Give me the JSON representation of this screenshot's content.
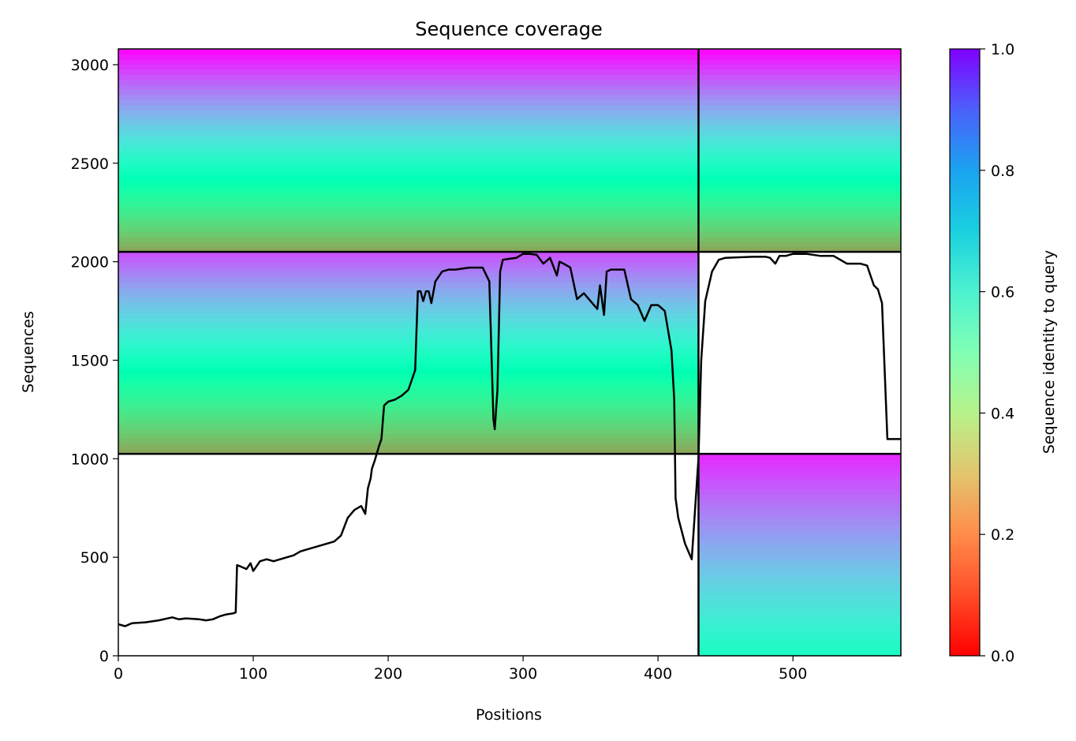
{
  "chart_data": {
    "type": "heatmap",
    "title": "Sequence coverage",
    "xlabel": "Positions",
    "ylabel": "Sequences",
    "xlim": [
      0,
      580
    ],
    "ylim": [
      0,
      3080
    ],
    "x_ticks": [
      0,
      100,
      200,
      300,
      400,
      500
    ],
    "y_ticks": [
      0,
      500,
      1000,
      1500,
      2000,
      2500,
      3000
    ],
    "grid": false,
    "colorbar": {
      "label": "Sequence identity to query",
      "range": [
        0,
        1
      ],
      "ticks": [
        0.0,
        0.2,
        0.4,
        0.6,
        0.8,
        1.0
      ],
      "tick_labels": [
        "0.0",
        "0.2",
        "0.4",
        "0.6",
        "0.8",
        "1.0"
      ],
      "colormap": "rainbow"
    },
    "block_separators": {
      "x": [
        430
      ],
      "y": [
        1025,
        2050
      ]
    },
    "blocks": [
      {
        "name": "block-lower-left",
        "x_range": [
          0,
          430
        ],
        "y_range": [
          0,
          1025
        ],
        "coverage": "empty"
      },
      {
        "name": "block-lower-right",
        "x_range": [
          430,
          580
        ],
        "y_range": [
          0,
          1025
        ],
        "identity_bottom": 0.55,
        "identity_top": 0.95
      },
      {
        "name": "block-middle-left",
        "x_range": [
          0,
          430
        ],
        "y_range": [
          1025,
          2050
        ],
        "identity_bottom": 0.22,
        "identity_top": 0.9
      },
      {
        "name": "block-middle-right",
        "x_range": [
          430,
          580
        ],
        "y_range": [
          1025,
          2050
        ],
        "coverage": "empty"
      },
      {
        "name": "block-upper-left",
        "x_range": [
          0,
          430
        ],
        "y_range": [
          2050,
          3080
        ],
        "identity_bottom": 0.22,
        "identity_top": 1.0
      },
      {
        "name": "block-upper-right",
        "x_range": [
          430,
          580
        ],
        "y_range": [
          2050,
          3080
        ],
        "identity_bottom": 0.22,
        "identity_top": 1.0
      }
    ],
    "series": [
      {
        "type": "line",
        "color": "#000000",
        "x": [
          0,
          5,
          10,
          20,
          30,
          40,
          45,
          50,
          60,
          65,
          70,
          75,
          80,
          85,
          87,
          88,
          90,
          95,
          98,
          100,
          105,
          110,
          115,
          120,
          130,
          135,
          140,
          150,
          160,
          165,
          170,
          175,
          180,
          183,
          185,
          187,
          188,
          190,
          193,
          195,
          197,
          200,
          205,
          210,
          215,
          220,
          222,
          224,
          226,
          228,
          230,
          232,
          235,
          240,
          245,
          250,
          260,
          270,
          275,
          278,
          279,
          281,
          283,
          285,
          290,
          295,
          300,
          305,
          310,
          315,
          320,
          325,
          327,
          330,
          335,
          340,
          345,
          355,
          357,
          360,
          362,
          365,
          370,
          375,
          380,
          385,
          390,
          395,
          400,
          405,
          410,
          412,
          413,
          415,
          420,
          425,
          430,
          432,
          435,
          440,
          445,
          450,
          470,
          480,
          483,
          487,
          490,
          495,
          500,
          510,
          520,
          530,
          540,
          550,
          555,
          560,
          563,
          566,
          570,
          575,
          580
        ],
        "y": [
          160,
          150,
          165,
          170,
          180,
          195,
          185,
          190,
          185,
          180,
          185,
          200,
          210,
          215,
          220,
          460,
          455,
          440,
          470,
          430,
          480,
          490,
          480,
          490,
          510,
          530,
          540,
          560,
          580,
          610,
          700,
          740,
          760,
          720,
          850,
          900,
          950,
          990,
          1060,
          1100,
          1270,
          1290,
          1300,
          1320,
          1350,
          1450,
          1850,
          1850,
          1800,
          1850,
          1850,
          1790,
          1900,
          1950,
          1960,
          1960,
          1970,
          1970,
          1900,
          1200,
          1150,
          1350,
          1950,
          2010,
          2015,
          2020,
          2040,
          2040,
          2035,
          1990,
          2020,
          1930,
          2000,
          1990,
          1970,
          1810,
          1840,
          1760,
          1880,
          1730,
          1950,
          1960,
          1960,
          1960,
          1810,
          1780,
          1700,
          1780,
          1780,
          1750,
          1550,
          1300,
          800,
          700,
          570,
          490,
          1000,
          1500,
          1800,
          1950,
          2010,
          2020,
          2025,
          2025,
          2020,
          1990,
          2030,
          2030,
          2040,
          2040,
          2030,
          2030,
          1990,
          1990,
          1980,
          1880,
          1860,
          1790,
          1100,
          1100,
          1100
        ]
      }
    ]
  }
}
